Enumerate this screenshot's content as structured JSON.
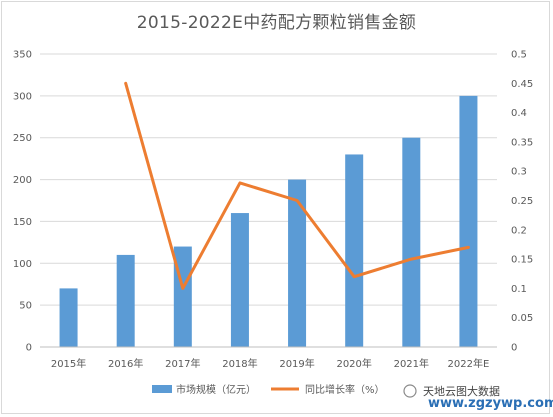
{
  "chart_data": {
    "type": "bar",
    "title": "2015-2022E中药配方颗粒销售金额",
    "categories": [
      "2015年",
      "2016年",
      "2017年",
      "2018年",
      "2019年",
      "2020年",
      "2021年",
      "2022年E"
    ],
    "series": [
      {
        "name": "市场规模（亿元）",
        "type": "bar",
        "axis": "left",
        "color": "#5b9bd5",
        "values": [
          70,
          110,
          120,
          160,
          200,
          230,
          250,
          300
        ]
      },
      {
        "name": "同比增长率（%）",
        "type": "line",
        "axis": "right",
        "color": "#ed7d31",
        "values": [
          null,
          0.45,
          0.1,
          0.28,
          0.25,
          0.12,
          0.15,
          0.17
        ]
      }
    ],
    "ylim": [
      0,
      350
    ],
    "yticks": [
      "0",
      "50",
      "100",
      "150",
      "200",
      "250",
      "300",
      "350"
    ],
    "y2lim": [
      0,
      0.5
    ],
    "y2ticks": [
      "0",
      "0.05",
      "0.1",
      "0.15",
      "0.2",
      "0.25",
      "0.3",
      "0.35",
      "0.4",
      "0.45",
      "0.5"
    ],
    "grid": true,
    "legend_position": "bottom"
  },
  "watermark": {
    "source_text": "天地云图大数据",
    "url": "www.zgzywp.com"
  }
}
